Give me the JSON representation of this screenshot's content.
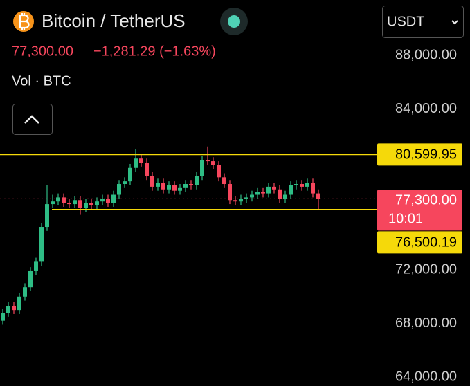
{
  "header": {
    "symbol": "Bitcoin / TetherUS",
    "change": "−1,281.29 (−1.63%)",
    "volume_label": "Vol · BTC",
    "quote_currency": "USDT"
  },
  "chart_data": {
    "type": "candlestick",
    "open": [
      68200,
      68800,
      69300,
      69000,
      70000,
      70700,
      71900,
      72600,
      75200,
      76900,
      77100,
      77400,
      77000,
      76900,
      77200,
      76600,
      77000,
      76800,
      77100,
      77300,
      77000,
      77600,
      78400,
      78600,
      79600,
      80300,
      80000,
      79000,
      78200,
      78500,
      78000,
      78300,
      77900,
      78100,
      78400,
      78300,
      79000,
      80200,
      80100,
      79800,
      78900,
      78400,
      77200,
      77100,
      77300,
      77400,
      77600,
      77800,
      77700,
      78200,
      78000,
      77300,
      77600,
      78300,
      78400,
      78200,
      78500,
      77700
    ],
    "high": [
      69100,
      69600,
      69600,
      70300,
      71000,
      72200,
      72900,
      75500,
      78300,
      77600,
      77700,
      77700,
      77300,
      77500,
      77500,
      77300,
      77300,
      77400,
      77600,
      77600,
      77900,
      78700,
      78900,
      79900,
      81000,
      80600,
      80300,
      79300,
      78800,
      78800,
      78600,
      78600,
      78400,
      78700,
      78700,
      79300,
      80500,
      81200,
      80400,
      80100,
      79200,
      78700,
      77500,
      77600,
      77700,
      77900,
      78100,
      78100,
      78500,
      78500,
      78300,
      77900,
      78600,
      78700,
      78700,
      78800,
      78800,
      78000
    ],
    "low": [
      67900,
      68500,
      68700,
      68700,
      69700,
      70400,
      71600,
      72300,
      74900,
      76600,
      76800,
      76700,
      76600,
      76600,
      76100,
      76300,
      76500,
      76500,
      76800,
      76700,
      76700,
      77300,
      78100,
      78300,
      79300,
      79700,
      78700,
      77900,
      77900,
      77700,
      77700,
      77600,
      77600,
      77800,
      78000,
      78000,
      78700,
      79800,
      79500,
      78600,
      78100,
      76900,
      76800,
      76800,
      77000,
      77100,
      77300,
      77400,
      77400,
      77700,
      77000,
      77000,
      77300,
      78000,
      77900,
      77900,
      77400,
      76500
    ],
    "close": [
      68800,
      69300,
      69000,
      70000,
      70700,
      71900,
      72600,
      75200,
      76900,
      77100,
      77400,
      77000,
      76900,
      77200,
      76600,
      77000,
      76800,
      77100,
      77300,
      77000,
      77600,
      78400,
      78600,
      79600,
      80300,
      80000,
      79000,
      78200,
      78500,
      78000,
      78300,
      77900,
      78100,
      78400,
      78300,
      79000,
      80200,
      80100,
      79800,
      78900,
      78400,
      77200,
      77100,
      77300,
      77400,
      77600,
      77800,
      77700,
      78200,
      78000,
      77300,
      77600,
      78300,
      78400,
      78200,
      78500,
      77700,
      77300
    ],
    "up_color": "#2ebd85",
    "down_color": "#f6465d",
    "ylim": [
      63330,
      92130
    ],
    "yticks": [
      {
        "value": 64000,
        "label": "64,000.00"
      },
      {
        "value": 68000,
        "label": "68,000.00"
      },
      {
        "value": 72000,
        "label": "72,000.00"
      },
      {
        "value": 84000,
        "label": "84,000.00"
      },
      {
        "value": 88000,
        "label": "88,000.00"
      }
    ],
    "price_lines": [
      {
        "value": 80599.95,
        "label": "80,599.95",
        "color": "#f5d90a"
      },
      {
        "value": 76500.19,
        "label": "76,500.19",
        "color": "#f5d90a"
      }
    ],
    "last_price": {
      "value": 77300,
      "label": "77,300.00",
      "countdown": "10:01",
      "color": "#f6465d"
    }
  }
}
